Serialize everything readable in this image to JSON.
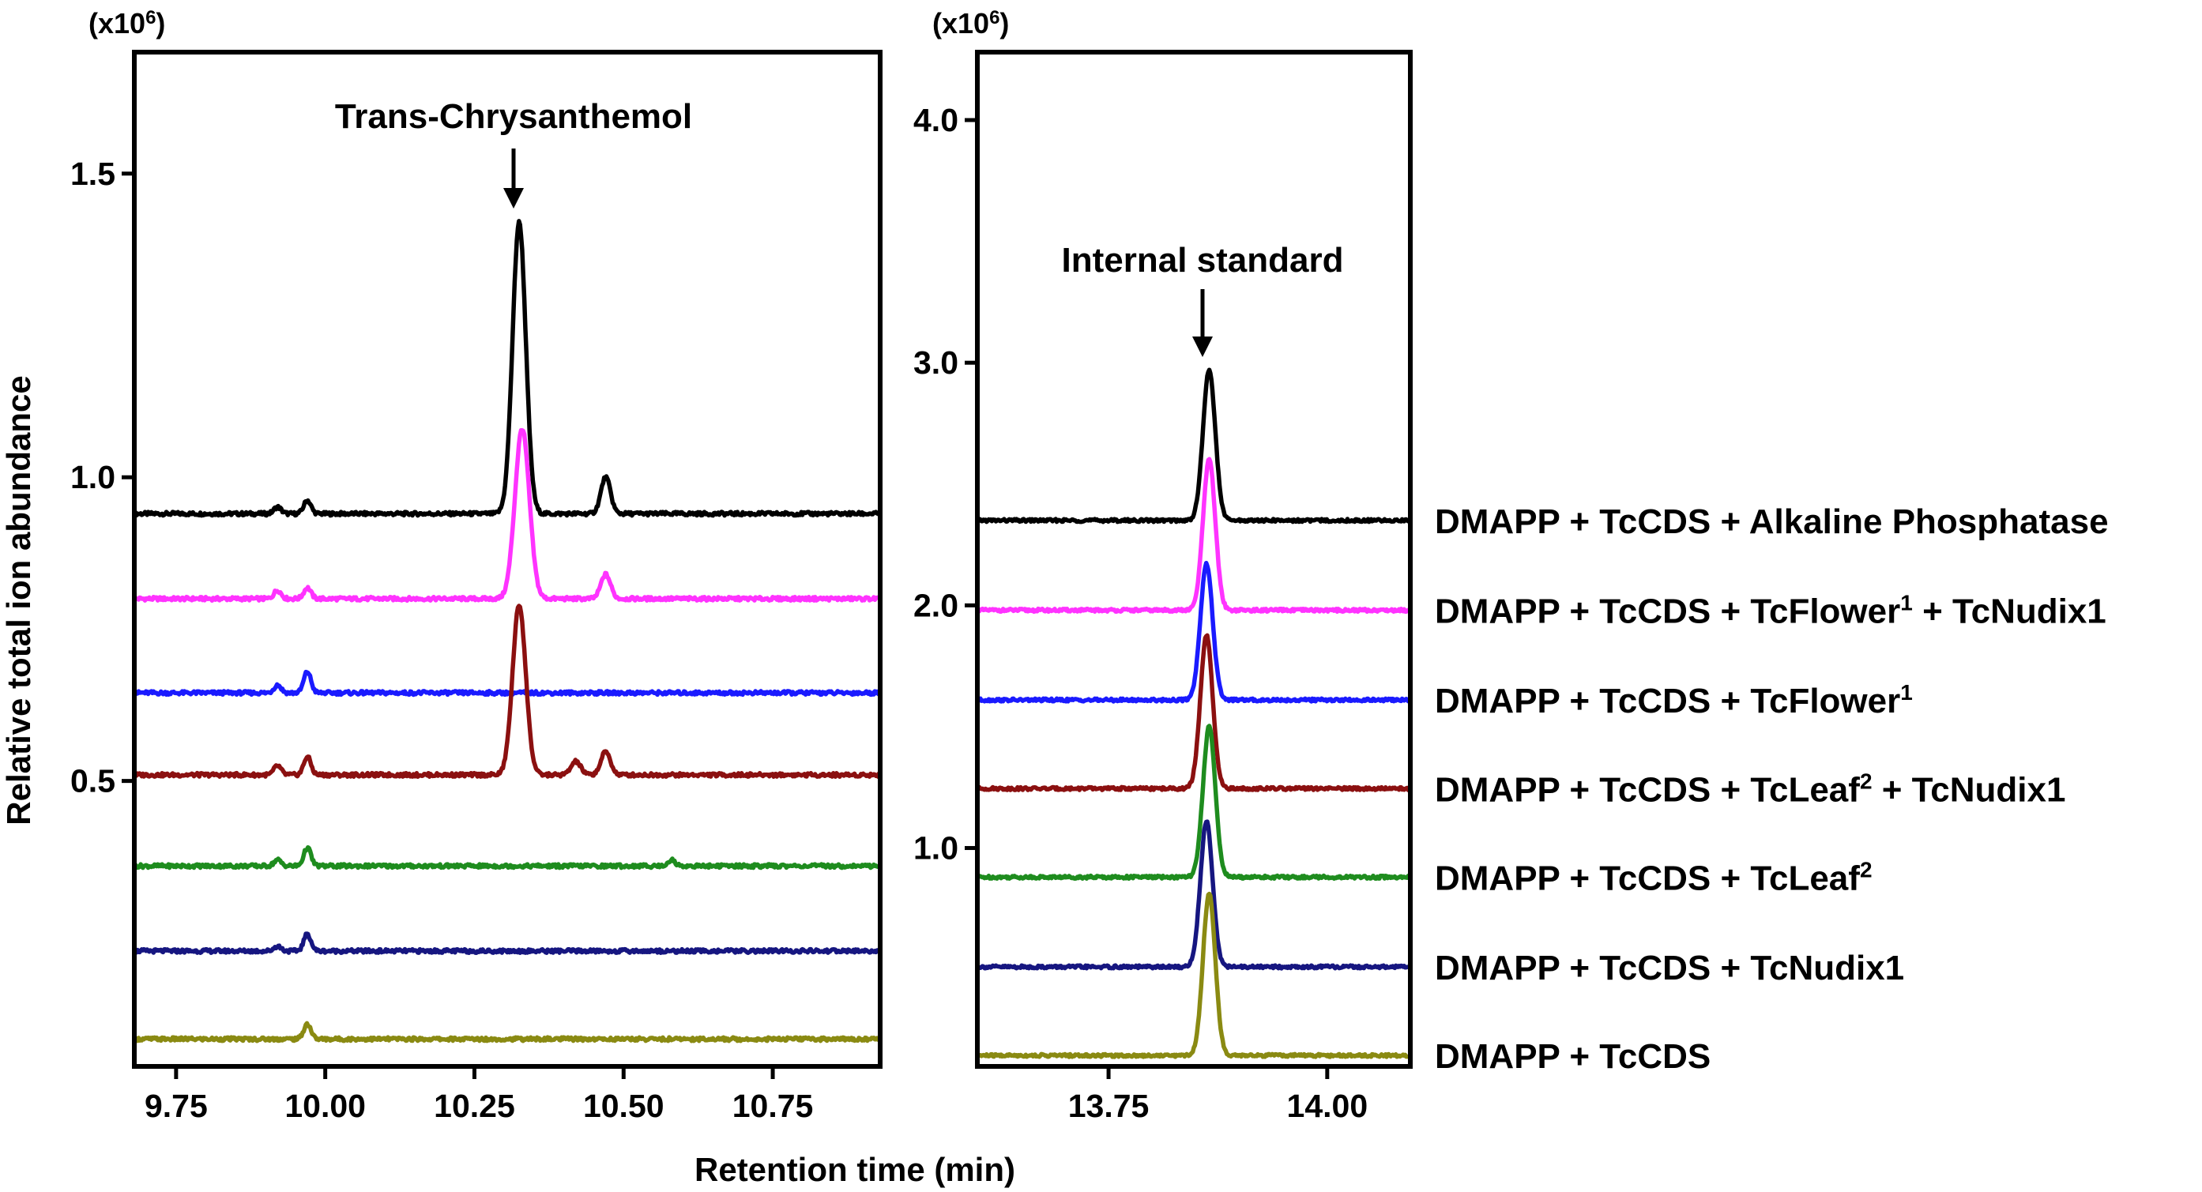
{
  "figure": {
    "ylabel": "Relative total ion abundance",
    "xlabel": "Retention time (min)"
  },
  "chart_data": [
    {
      "type": "line",
      "panel": "left",
      "multiplier_base": "(x10",
      "multiplier_exp": "6",
      "multiplier_close": ")",
      "annotation": "Trans-Chrysanthemol",
      "annotation_x": 10.325,
      "xlim": [
        9.68,
        10.93
      ],
      "ylim": [
        0.03,
        1.7
      ],
      "xticks": [
        9.75,
        10.0,
        10.25,
        10.5,
        10.75
      ],
      "xtick_labels": [
        "9.75",
        "10.00",
        "10.25",
        "10.50",
        "10.75"
      ],
      "yticks": [
        0.5,
        1.0,
        1.5
      ],
      "ytick_labels": [
        "0.5",
        "1.0",
        "1.5"
      ],
      "series": [
        {
          "name": "DMAPP + TcCDS + Alkaline Phosphatase",
          "color": "#000000",
          "baseline": 0.94,
          "peaks": [
            [
              9.92,
              0.011,
              0.006
            ],
            [
              9.97,
              0.022,
              0.006
            ],
            [
              10.325,
              0.48,
              0.011
            ],
            [
              10.47,
              0.06,
              0.008
            ]
          ]
        },
        {
          "name": "DMAPP + TcCDS + TcFlower1 + TcNudix1",
          "color": "#ff33ff",
          "baseline": 0.8,
          "peaks": [
            [
              9.92,
              0.014,
              0.006
            ],
            [
              9.97,
              0.018,
              0.006
            ],
            [
              10.33,
              0.28,
              0.012
            ],
            [
              10.47,
              0.04,
              0.008
            ]
          ]
        },
        {
          "name": "DMAPP + TcCDS + TcFlower1",
          "color": "#1a1aff",
          "baseline": 0.645,
          "peaks": [
            [
              9.92,
              0.013,
              0.006
            ],
            [
              9.97,
              0.035,
              0.006
            ]
          ]
        },
        {
          "name": "DMAPP + TcCDS + TcLeaf2 + TcNudix1",
          "color": "#8b1010",
          "baseline": 0.51,
          "peaks": [
            [
              9.92,
              0.015,
              0.006
            ],
            [
              9.97,
              0.03,
              0.006
            ],
            [
              10.325,
              0.28,
              0.011
            ],
            [
              10.42,
              0.022,
              0.008
            ],
            [
              10.47,
              0.038,
              0.008
            ]
          ]
        },
        {
          "name": "DMAPP + TcCDS + TcLeaf2",
          "color": "#1e8c1e",
          "baseline": 0.36,
          "peaks": [
            [
              9.92,
              0.01,
              0.006
            ],
            [
              9.97,
              0.03,
              0.006
            ],
            [
              10.58,
              0.01,
              0.006
            ]
          ]
        },
        {
          "name": "DMAPP + TcCDS + TcNudix1",
          "color": "#161680",
          "baseline": 0.22,
          "peaks": [
            [
              9.92,
              0.008,
              0.006
            ],
            [
              9.97,
              0.028,
              0.006
            ]
          ]
        },
        {
          "name": "DMAPP + TcCDS",
          "color": "#8a8a12",
          "baseline": 0.075,
          "peaks": [
            [
              9.97,
              0.025,
              0.006
            ]
          ]
        }
      ]
    },
    {
      "type": "line",
      "panel": "right",
      "multiplier_base": "(x10",
      "multiplier_exp": "6",
      "multiplier_close": ")",
      "annotation": "Internal standard",
      "annotation_x": 13.865,
      "xlim": [
        13.6,
        14.095
      ],
      "ylim": [
        0.1,
        4.28
      ],
      "xticks": [
        13.75,
        14.0
      ],
      "xtick_labels": [
        "13.75",
        "14.00"
      ],
      "yticks": [
        1.0,
        2.0,
        3.0,
        4.0
      ],
      "ytick_labels": [
        "1.0",
        "2.0",
        "3.0",
        "4.0"
      ],
      "series": [
        {
          "name": "DMAPP + TcCDS + Alkaline Phosphatase",
          "color": "#000000",
          "baseline": 2.35,
          "peaks": [
            [
              13.865,
              0.62,
              0.007
            ]
          ]
        },
        {
          "name": "DMAPP + TcCDS + TcFlower1 + TcNudix1",
          "color": "#ff33ff",
          "baseline": 1.98,
          "peaks": [
            [
              13.865,
              0.62,
              0.007
            ]
          ]
        },
        {
          "name": "DMAPP + TcCDS + TcFlower1",
          "color": "#1a1aff",
          "baseline": 1.61,
          "peaks": [
            [
              13.862,
              0.56,
              0.007
            ]
          ]
        },
        {
          "name": "DMAPP + TcCDS + TcLeaf2 + TcNudix1",
          "color": "#8b1010",
          "baseline": 1.245,
          "peaks": [
            [
              13.862,
              0.63,
              0.007
            ]
          ]
        },
        {
          "name": "DMAPP + TcCDS + TcLeaf2",
          "color": "#1e8c1e",
          "baseline": 0.88,
          "peaks": [
            [
              13.865,
              0.62,
              0.007
            ]
          ]
        },
        {
          "name": "DMAPP + TcCDS + TcNudix1",
          "color": "#161680",
          "baseline": 0.51,
          "peaks": [
            [
              13.862,
              0.6,
              0.007
            ]
          ]
        },
        {
          "name": "DMAPP + TcCDS",
          "color": "#8a8a12",
          "baseline": 0.145,
          "peaks": [
            [
              13.865,
              0.67,
              0.007
            ]
          ]
        }
      ]
    }
  ],
  "legend": [
    {
      "main": "DMAPP + TcCDS + Alkaline Phosphatase",
      "sup": "",
      "tail": ""
    },
    {
      "main": "DMAPP + TcCDS + TcFlower",
      "sup": "1",
      "tail": " + TcNudix1"
    },
    {
      "main": "DMAPP + TcCDS + TcFlower",
      "sup": "1",
      "tail": ""
    },
    {
      "main": "DMAPP + TcCDS + TcLeaf",
      "sup": "2",
      "tail": " + TcNudix1"
    },
    {
      "main": "DMAPP + TcCDS + TcLeaf",
      "sup": "2",
      "tail": ""
    },
    {
      "main": "DMAPP + TcCDS + TcNudix1",
      "sup": "",
      "tail": ""
    },
    {
      "main": "DMAPP + TcCDS",
      "sup": "",
      "tail": ""
    }
  ]
}
